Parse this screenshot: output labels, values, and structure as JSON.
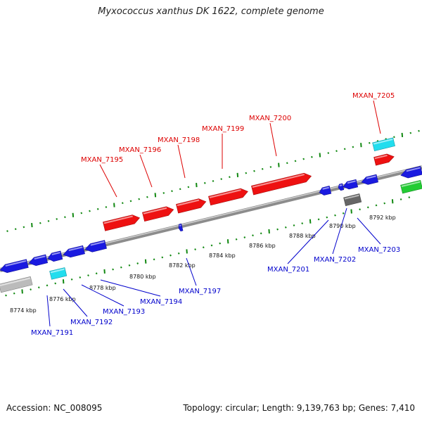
{
  "title": "Myxococcus xanthus DK 1622, complete genome",
  "footer": {
    "accession": "Accession: NC_008095",
    "summary": "Topology: circular; Length: 9,139,763 bp; Genes: 7,410"
  },
  "colors": {
    "forward_gene": "#ee1111",
    "reverse_gene": "#1a1ae0",
    "rna_light": "#22ddee",
    "pseudo_grey": "#666666",
    "light_grey": "#bbbbbb",
    "green": "#22cc33",
    "forward_label": "#dd0000",
    "reverse_label": "#0000cc",
    "tick": "#118811"
  },
  "kbp_labels": [
    "8774 kbp",
    "8776 kbp",
    "8778 kbp",
    "8780 kbp",
    "8782 kbp",
    "8784 kbp",
    "8786 kbp",
    "8788 kbp",
    "8790 kbp",
    "8792 kbp"
  ],
  "forward_labels": [
    "MXAN_7195",
    "MXAN_7196",
    "MXAN_7198",
    "MXAN_7199",
    "MXAN_7200",
    "MXAN_7205"
  ],
  "reverse_labels": [
    "MXAN_7191",
    "MXAN_7192",
    "MXAN_7193",
    "MXAN_7194",
    "MXAN_7197",
    "MXAN_7201",
    "MXAN_7202",
    "MXAN_7203"
  ]
}
